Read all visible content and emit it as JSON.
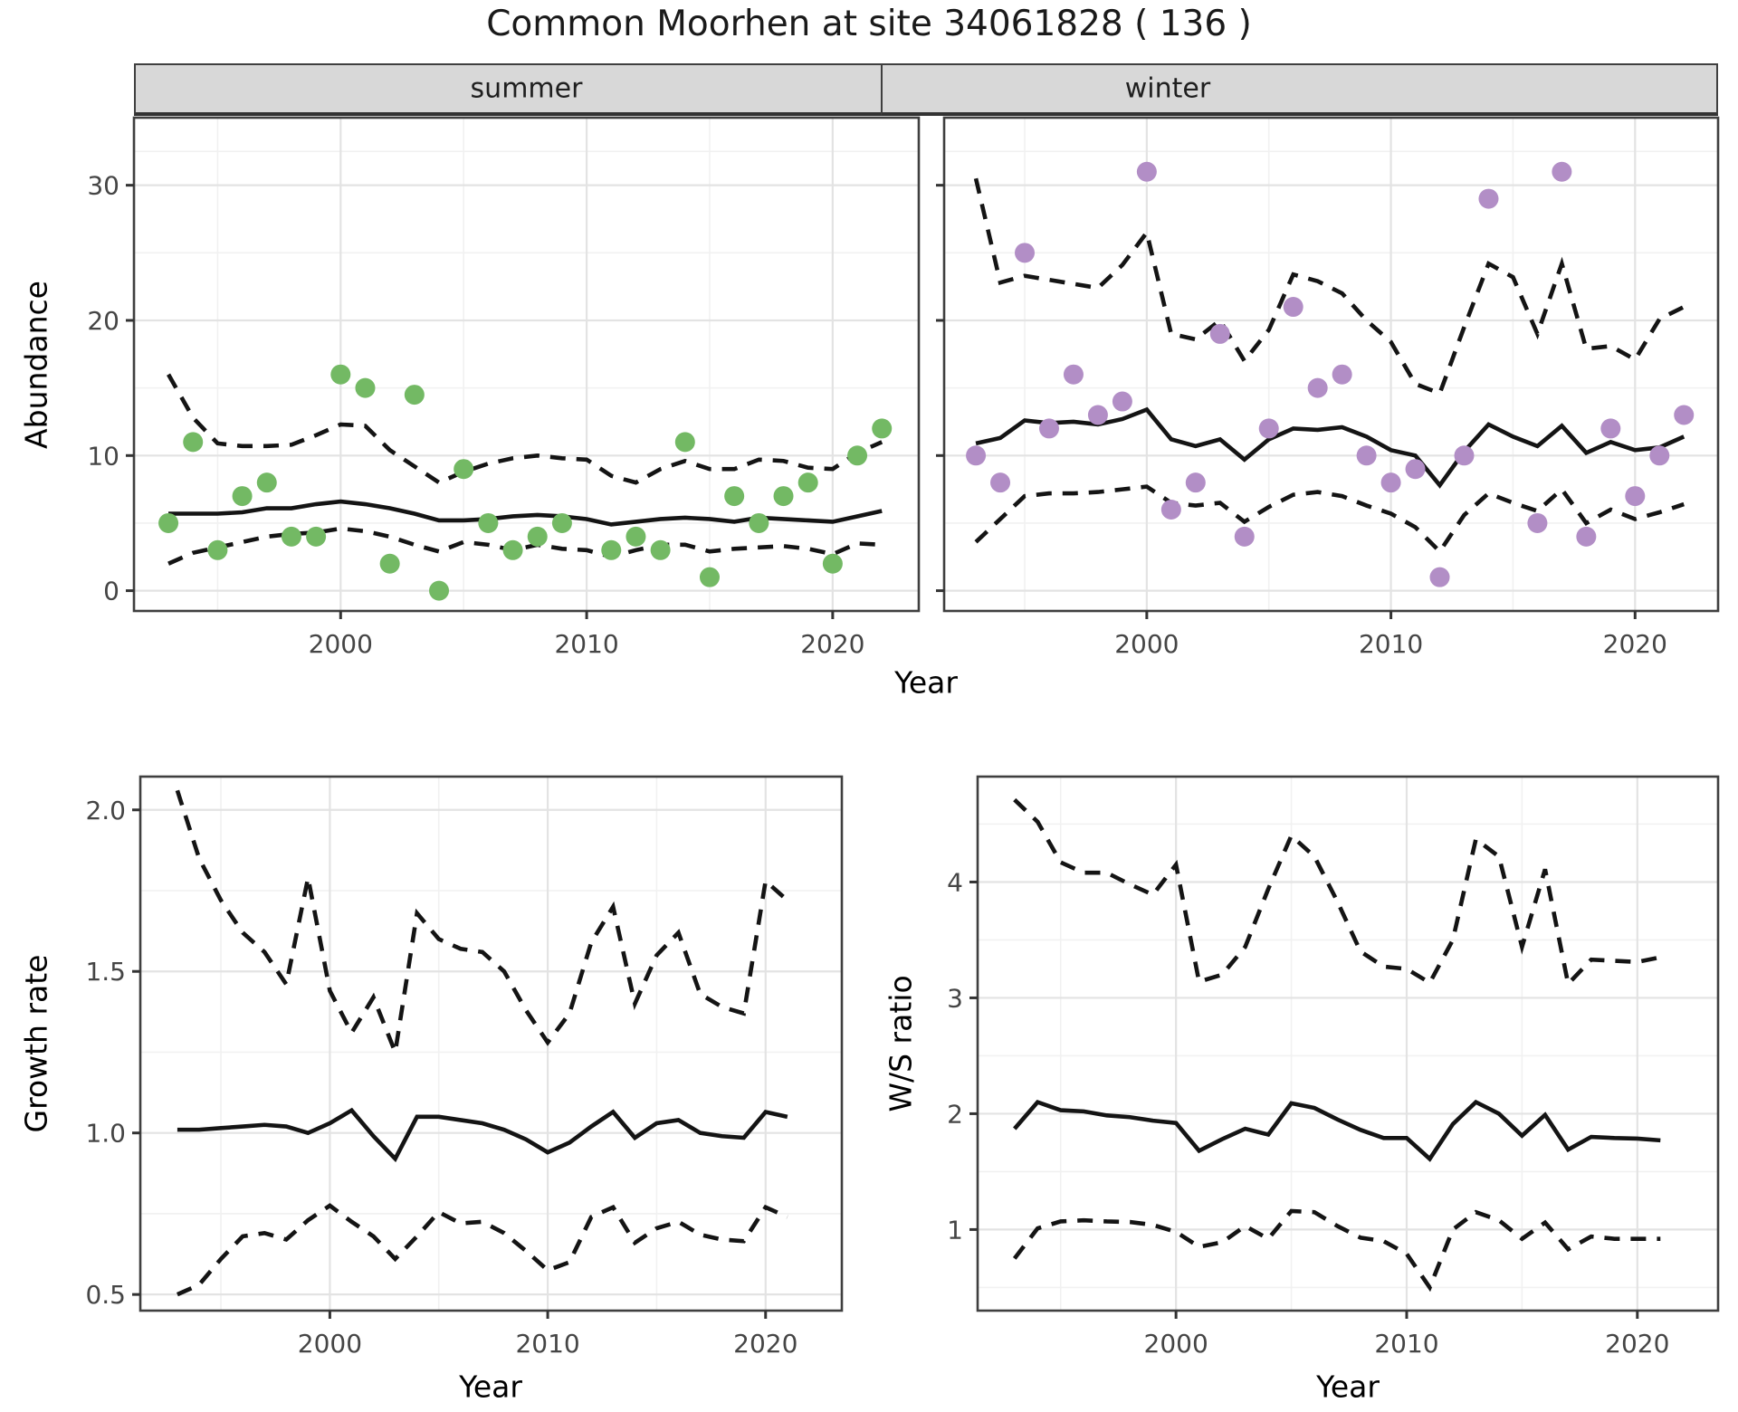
{
  "title": "Common Moorhen at site 34061828 ( 136 )",
  "facets": [
    "summer",
    "winter"
  ],
  "labels": {
    "abundance": "Abundance",
    "year": "Year",
    "growth_rate": "Growth rate",
    "ws_ratio": "W/S ratio"
  },
  "style": {
    "dot_green": "#73B964",
    "dot_purple": "#B28EC6",
    "line": "#141414",
    "grid_major": "#e3e3e3",
    "grid_minor": "#f1f1f1",
    "border": "#3f3f3f",
    "strip_bg": "#d8d8d8",
    "tick_label": "#454545"
  },
  "chart_data": [
    {
      "id": "summer-abundance",
      "type": "line+scatter",
      "facet_label": "summer",
      "ylabel": "Abundance",
      "xlabel": "Year",
      "x": [
        1993,
        1994,
        1995,
        1996,
        1997,
        1998,
        1999,
        2000,
        2001,
        2002,
        2003,
        2004,
        2005,
        2006,
        2007,
        2008,
        2009,
        2010,
        2011,
        2012,
        2013,
        2014,
        2015,
        2016,
        2017,
        2018,
        2019,
        2020,
        2021,
        2022
      ],
      "dots": [
        5,
        11,
        3,
        7,
        8,
        4,
        4,
        16,
        15,
        2,
        14.5,
        0,
        9,
        5,
        3,
        4,
        5,
        null,
        3,
        4,
        3,
        11,
        1,
        7,
        5,
        7,
        8,
        2,
        10,
        12
      ],
      "solid": [
        5.7,
        5.7,
        5.7,
        5.8,
        6.1,
        6.1,
        6.4,
        6.6,
        6.4,
        6.1,
        5.7,
        5.2,
        5.2,
        5.3,
        5.5,
        5.6,
        5.5,
        5.3,
        4.9,
        5.1,
        5.3,
        5.4,
        5.3,
        5.1,
        5.4,
        5.3,
        5.2,
        5.1,
        5.5,
        5.9
      ],
      "upper": [
        16,
        12.8,
        10.9,
        10.7,
        10.7,
        10.8,
        11.5,
        12.3,
        12.2,
        10.4,
        9.2,
        8.0,
        8.8,
        9.4,
        9.8,
        10.0,
        9.8,
        9.7,
        8.5,
        8.0,
        9.0,
        9.6,
        9.0,
        9.0,
        9.7,
        9.6,
        9.1,
        9.0,
        10.2,
        11.0
      ],
      "lower": [
        2.0,
        2.8,
        3.2,
        3.6,
        4.0,
        4.2,
        4.3,
        4.6,
        4.4,
        4.0,
        3.4,
        2.9,
        3.6,
        3.4,
        3.0,
        3.4,
        3.1,
        3.0,
        2.5,
        3.0,
        3.4,
        3.4,
        2.9,
        3.1,
        3.2,
        3.3,
        3.1,
        2.7,
        3.5,
        3.4
      ],
      "dot_color": "#73B964",
      "xlim": [
        1991.6,
        2023.5
      ],
      "ylim": [
        -1.5,
        35
      ],
      "xticks": [
        2000,
        2010,
        2020
      ],
      "xtick_labels": [
        "2000",
        "2010",
        "2020"
      ],
      "yticks": [
        0,
        10,
        20,
        30
      ],
      "ytick_labels": [
        "0",
        "10",
        "20",
        "30"
      ],
      "xminor": [
        1995,
        2005,
        2015
      ],
      "yminor": [
        5,
        15,
        25,
        32.5
      ],
      "grid": true,
      "legend": "none"
    },
    {
      "id": "winter-abundance",
      "type": "line+scatter",
      "facet_label": "winter",
      "ylabel": "Abundance",
      "xlabel": "Year",
      "x": [
        1993,
        1994,
        1995,
        1996,
        1997,
        1998,
        1999,
        2000,
        2001,
        2002,
        2003,
        2004,
        2005,
        2006,
        2007,
        2008,
        2009,
        2010,
        2011,
        2012,
        2013,
        2014,
        2015,
        2016,
        2017,
        2018,
        2019,
        2020,
        2021,
        2022
      ],
      "dots": [
        10,
        8,
        25,
        12,
        16,
        13,
        14,
        31,
        6,
        8,
        19,
        4,
        12,
        21,
        15,
        16,
        10,
        8,
        9,
        1,
        10,
        29,
        null,
        5,
        31,
        4,
        12,
        7,
        10,
        13
      ],
      "solid": [
        10.9,
        11.3,
        12.6,
        12.4,
        12.5,
        12.3,
        12.7,
        13.4,
        11.2,
        10.7,
        11.2,
        9.7,
        11.2,
        12.0,
        11.9,
        12.1,
        11.4,
        10.4,
        10.0,
        7.8,
        10.3,
        12.3,
        11.4,
        10.7,
        12.2,
        10.2,
        11.0,
        10.4,
        10.6,
        11.4
      ],
      "upper": [
        30.5,
        22.8,
        23.3,
        23.0,
        22.7,
        22.4,
        24.1,
        26.5,
        19.0,
        18.6,
        20.0,
        17.0,
        19.3,
        23.4,
        22.9,
        22.0,
        20.0,
        18.4,
        15.3,
        14.6,
        19.5,
        24.2,
        23.2,
        19.0,
        24.2,
        17.9,
        18.1,
        17.1,
        20.1,
        21.0
      ],
      "lower": [
        3.6,
        5.3,
        7.0,
        7.2,
        7.2,
        7.3,
        7.5,
        7.7,
        6.5,
        6.3,
        6.5,
        5.1,
        6.2,
        7.1,
        7.3,
        7.0,
        6.3,
        5.7,
        4.7,
        2.9,
        5.6,
        7.2,
        6.5,
        5.9,
        7.5,
        5.0,
        6.0,
        5.3,
        5.8,
        6.4
      ],
      "dot_color": "#B28EC6",
      "xlim": [
        1991.7,
        2023.4
      ],
      "ylim": [
        -1.5,
        35
      ],
      "xticks": [
        2000,
        2010,
        2020
      ],
      "xtick_labels": [
        "2000",
        "2010",
        "2020"
      ],
      "yticks": [
        0,
        10,
        20,
        30
      ],
      "ytick_labels": [],
      "xminor": [
        1995,
        2005,
        2015
      ],
      "yminor": [
        5,
        15,
        25,
        32.5
      ],
      "grid": true,
      "legend": "none"
    },
    {
      "id": "growth-rate",
      "type": "line",
      "ylabel": "Growth rate",
      "xlabel": "Year",
      "x": [
        1993,
        1994,
        1995,
        1996,
        1997,
        1998,
        1999,
        2000,
        2001,
        2002,
        2003,
        2004,
        2005,
        2006,
        2007,
        2008,
        2009,
        2010,
        2011,
        2012,
        2013,
        2014,
        2015,
        2016,
        2017,
        2018,
        2019,
        2020,
        2021
      ],
      "solid": [
        1.01,
        1.01,
        1.015,
        1.02,
        1.025,
        1.02,
        1.0,
        1.03,
        1.07,
        0.99,
        0.92,
        1.05,
        1.05,
        1.04,
        1.03,
        1.01,
        0.98,
        0.94,
        0.97,
        1.02,
        1.065,
        0.985,
        1.03,
        1.04,
        1.0,
        0.99,
        0.985,
        1.065,
        1.05
      ],
      "upper": [
        2.06,
        1.85,
        1.72,
        1.62,
        1.56,
        1.46,
        1.79,
        1.44,
        1.31,
        1.42,
        1.25,
        1.68,
        1.6,
        1.57,
        1.56,
        1.5,
        1.38,
        1.28,
        1.37,
        1.59,
        1.7,
        1.4,
        1.55,
        1.62,
        1.43,
        1.39,
        1.37,
        1.78,
        1.72
      ],
      "lower": [
        0.5,
        0.53,
        0.61,
        0.68,
        0.69,
        0.67,
        0.73,
        0.775,
        0.725,
        0.68,
        0.61,
        0.68,
        0.755,
        0.72,
        0.725,
        0.69,
        0.635,
        0.575,
        0.6,
        0.74,
        0.77,
        0.66,
        0.705,
        0.725,
        0.685,
        0.67,
        0.665,
        0.77,
        0.74
      ],
      "xlim": [
        1991.3,
        2023.5
      ],
      "ylim": [
        0.45,
        2.103
      ],
      "xticks": [
        2000,
        2010,
        2020
      ],
      "xtick_labels": [
        "2000",
        "2010",
        "2020"
      ],
      "yticks": [
        0.5,
        1.0,
        1.5,
        2.0
      ],
      "ytick_labels": [
        "0.5",
        "1.0",
        "1.5",
        "2.0"
      ],
      "xminor": [
        1995,
        2005,
        2015
      ],
      "yminor": [
        0.75,
        1.25,
        1.75
      ],
      "grid": true,
      "legend": "none"
    },
    {
      "id": "ws-ratio",
      "type": "line",
      "ylabel": "W/S ratio",
      "xlabel": "Year",
      "x": [
        1993,
        1994,
        1995,
        1996,
        1997,
        1998,
        1999,
        2000,
        2001,
        2002,
        2003,
        2004,
        2005,
        2006,
        2007,
        2008,
        2009,
        2010,
        2011,
        2012,
        2013,
        2014,
        2015,
        2016,
        2017,
        2018,
        2019,
        2020,
        2021
      ],
      "solid": [
        1.87,
        2.1,
        2.03,
        2.02,
        1.985,
        1.97,
        1.94,
        1.92,
        1.68,
        1.78,
        1.87,
        1.82,
        2.09,
        2.05,
        1.95,
        1.86,
        1.79,
        1.79,
        1.61,
        1.91,
        2.1,
        2.0,
        1.81,
        1.99,
        1.69,
        1.8,
        1.79,
        1.785,
        1.77
      ],
      "upper": [
        4.71,
        4.52,
        4.17,
        4.08,
        4.08,
        3.98,
        3.89,
        4.15,
        3.14,
        3.2,
        3.44,
        3.94,
        4.4,
        4.22,
        3.83,
        3.4,
        3.27,
        3.25,
        3.13,
        3.5,
        4.37,
        4.22,
        3.44,
        4.11,
        3.12,
        3.33,
        3.32,
        3.31,
        3.35
      ],
      "lower": [
        0.75,
        1.01,
        1.07,
        1.08,
        1.07,
        1.065,
        1.04,
        0.98,
        0.85,
        0.89,
        1.03,
        0.92,
        1.16,
        1.15,
        1.03,
        0.93,
        0.9,
        0.79,
        0.5,
        1.0,
        1.15,
        1.08,
        0.92,
        1.06,
        0.83,
        0.94,
        0.92,
        0.92,
        0.92
      ],
      "xlim": [
        1991.4,
        2023.5
      ],
      "ylim": [
        0.3,
        4.91
      ],
      "xticks": [
        2000,
        2010,
        2020
      ],
      "xtick_labels": [
        "2000",
        "2010",
        "2020"
      ],
      "yticks": [
        1,
        2,
        3,
        4
      ],
      "ytick_labels": [
        "1",
        "2",
        "3",
        "4"
      ],
      "xminor": [
        1995,
        2005,
        2015
      ],
      "yminor": [
        0.5,
        1.5,
        2.5,
        3.5,
        4.5
      ],
      "grid": true,
      "legend": "none"
    }
  ]
}
